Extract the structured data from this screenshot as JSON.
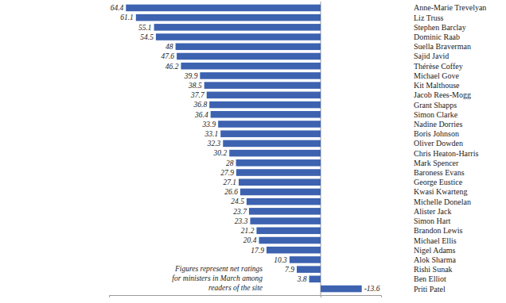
{
  "chart_data": {
    "type": "bar",
    "orientation": "horizontal",
    "categories": [
      "Anne-Marie Trevelyan",
      "Liz Truss",
      "Stephen Barclay",
      "Dominic Raab",
      "Suella Braverman",
      "Sajid Javid",
      "Thérèse Coffey",
      "Michael Gove",
      "Kit Malthouse",
      "Jacob Rees-Mogg",
      "Grant Shapps",
      "Simon Clarke",
      "Nadine Dorries",
      "Boris Johnson",
      "Oliver Dowden",
      "Chris Heaton-Harris",
      "Mark Spencer",
      "Baroness Evans",
      "George Eustice",
      "Kwasi Kwarteng",
      "Michelle Donelan",
      "Alister Jack",
      "Simon Hart",
      "Brandon Lewis",
      "Michael Ellis",
      "Nigel Adams",
      "Alok Sharma",
      "Rishi Sunak",
      "Ben Elliot",
      "Priti Patel"
    ],
    "values": [
      64.4,
      61.1,
      55.1,
      54.5,
      48,
      47.6,
      46.2,
      39.9,
      38.5,
      37.7,
      36.8,
      36.4,
      33.9,
      33.1,
      32.3,
      30.2,
      28,
      27.9,
      27.1,
      26.6,
      24.5,
      23.7,
      23.3,
      21.2,
      20.4,
      17.9,
      10.3,
      7.9,
      3.8,
      -13.6
    ],
    "color": "#3d62b0",
    "xlim": [
      -20,
      70
    ],
    "xticks": [
      0
    ],
    "tick_labels": false,
    "data_labels": true,
    "grid": false,
    "annotation": [
      "Figures represent net ratings",
      "for ministers in March among",
      "readers of the site"
    ]
  }
}
